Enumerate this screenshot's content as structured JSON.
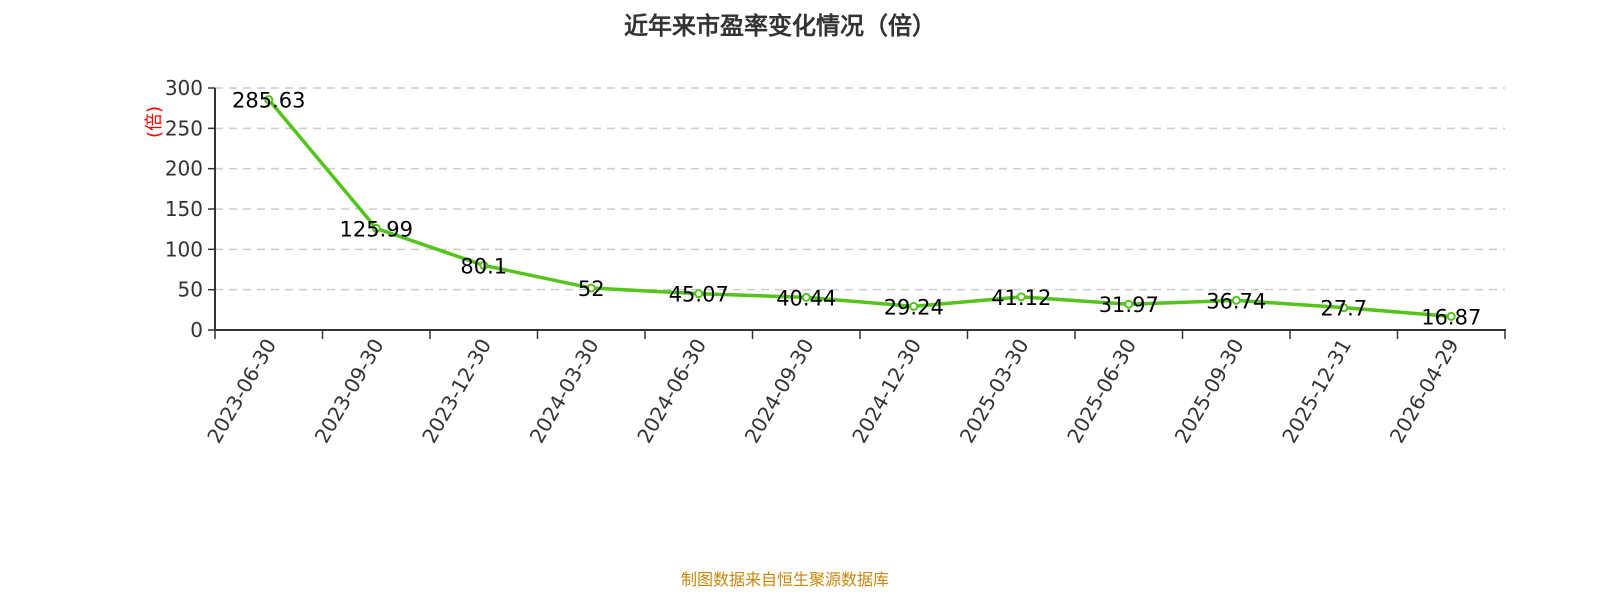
{
  "chart_data": {
    "type": "line",
    "title": "近年来市盈率变化情况（倍）",
    "ylabel": "(倍)",
    "xlabel": "",
    "categories": [
      "2023-06-30",
      "2023-09-30",
      "2023-12-30",
      "2024-03-30",
      "2024-06-30",
      "2024-09-30",
      "2024-12-30",
      "2025-03-30",
      "2025-06-30",
      "2025-09-30",
      "2025-12-31",
      "2026-04-29"
    ],
    "values": [
      285.63,
      125.99,
      80.1,
      52,
      45.07,
      40.44,
      29.24,
      41.12,
      31.97,
      36.74,
      27.7,
      16.87
    ],
    "data_labels": [
      "285.63",
      "125.99",
      "80.1",
      "52",
      "45.07",
      "40.44",
      "29.24",
      "41.12",
      "31.97",
      "36.74",
      "27.7",
      "16.87"
    ],
    "ylim": [
      0,
      300
    ],
    "yticks": [
      "0",
      "50",
      "100",
      "150",
      "200",
      "250",
      "300"
    ],
    "grid": true,
    "line_color": "#52c41a",
    "ylabel_color": "#ff0000"
  },
  "footer": {
    "source": "制图数据来自恒生聚源数据库"
  }
}
